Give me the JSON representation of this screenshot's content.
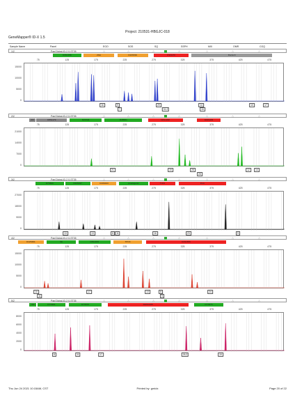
{
  "report": {
    "project": "Project: 210531-HBGJC-018",
    "app_name": "GeneMapper® ID-X 1.5",
    "columns": [
      "Sample Name",
      "Panel",
      "EGO",
      "SOS",
      "SQ",
      "SSPH",
      "MIX",
      "OMR",
      "CGQ"
    ]
  },
  "footer": {
    "date": "Thu Jun 24 2021 10:15AM, CST",
    "printed_by": "Printed by: gmidx",
    "page": "Page 20 of 22"
  },
  "panels": [
    {
      "label": "1/2",
      "name": "PanGlobal-ID-2.0-ST35",
      "color": "#3344cc",
      "markers": [
        {
          "name": "D3S1358",
          "color": "#22aa22",
          "x0": 100,
          "x1": 150
        },
        {
          "name": "vWA",
          "color": "#f0a030",
          "x0": 153,
          "x1": 207
        },
        {
          "name": "D16S539",
          "color": "#f0a030",
          "x0": 212,
          "x1": 265
        },
        {
          "name": "CSF1PO",
          "color": "#ee2222",
          "x0": 275,
          "x1": 335
        },
        {
          "name": "Penta D",
          "color": "#999999",
          "x0": 340,
          "x1": 480
        }
      ],
      "y_ticks": [
        "15000",
        "10000",
        "5000",
        "0"
      ],
      "y_max": 15000,
      "peaks": [
        {
          "x": 115,
          "h": 3000
        },
        {
          "x": 139,
          "h": 8000
        },
        {
          "x": 143,
          "h": 13000
        },
        {
          "x": 166,
          "h": 12000
        },
        {
          "x": 170,
          "h": 11500
        },
        {
          "x": 223,
          "h": 4500
        },
        {
          "x": 230,
          "h": 3800
        },
        {
          "x": 236,
          "h": 3200
        },
        {
          "x": 276,
          "h": 9000
        },
        {
          "x": 280,
          "h": 10000
        },
        {
          "x": 345,
          "h": 13500
        },
        {
          "x": 365,
          "h": 12500
        }
      ],
      "calls": [
        {
          "x": 135,
          "row": 0,
          "text": "16"
        },
        {
          "x": 157,
          "row": 0,
          "text": "9"
        },
        {
          "x": 160,
          "row": 1,
          "text": "7"
        },
        {
          "x": 216,
          "row": 0,
          "text": "29"
        },
        {
          "x": 226,
          "row": 1,
          "text": "31.2"
        },
        {
          "x": 277,
          "row": 0,
          "text": "14"
        },
        {
          "x": 279,
          "row": 1,
          "text": "15"
        },
        {
          "x": 350,
          "row": 0,
          "text": "10"
        },
        {
          "x": 370,
          "row": 0,
          "text": "17"
        }
      ]
    },
    {
      "label": "2/2",
      "name": "PanGlobal-ID-2.0-ST35",
      "color": "#22bb22",
      "markers": [
        {
          "name": "AM",
          "color": "#888888",
          "x0": 60,
          "x1": 70
        },
        {
          "name": "D8S1179",
          "color": "#888888",
          "x0": 72,
          "x1": 125
        },
        {
          "name": "D21S11",
          "color": "#22aa22",
          "x0": 130,
          "x1": 185
        },
        {
          "name": "D18S51",
          "color": "#22aa22",
          "x0": 190,
          "x1": 255
        },
        {
          "name": "D2S1338",
          "color": "#ee2222",
          "x0": 265,
          "x1": 325
        },
        {
          "name": "D19S433",
          "color": "#ee2222",
          "x0": 350,
          "x1": 390
        }
      ],
      "y_ticks": [
        "21000",
        "14000",
        "7000",
        "0"
      ],
      "y_max": 21000,
      "peaks": [
        {
          "x": 166,
          "h": 4500
        },
        {
          "x": 270,
          "h": 6000
        },
        {
          "x": 318,
          "h": 17000
        },
        {
          "x": 328,
          "h": 7000
        },
        {
          "x": 336,
          "h": 3500
        },
        {
          "x": 420,
          "h": 8000
        },
        {
          "x": 426,
          "h": 12000
        }
      ],
      "calls": [
        {
          "x": 150,
          "row": 0,
          "text": "21"
        },
        {
          "x": 233,
          "row": 0,
          "text": "19"
        },
        {
          "x": 265,
          "row": 0,
          "text": "28"
        },
        {
          "x": 275,
          "row": 1,
          "text": "28"
        },
        {
          "x": 345,
          "row": 0,
          "text": "12"
        },
        {
          "x": 357,
          "row": 0,
          "text": "14"
        }
      ]
    },
    {
      "label": "3/2",
      "name": "PanGlobal-ID-2.0-ST35",
      "color": "#222222",
      "markers": [
        {
          "name": "D7S820",
          "color": "#22aa22",
          "x0": 70,
          "x1": 120
        },
        {
          "name": "D13S317",
          "color": "#22aa22",
          "x0": 122,
          "x1": 165
        },
        {
          "name": "D19S433",
          "color": "#f0a030",
          "x0": 168,
          "x1": 210
        },
        {
          "name": "Amelogenin",
          "color": "#22aa22",
          "x0": 215,
          "x1": 265
        },
        {
          "name": "TH01",
          "color": "#ee2222",
          "x0": 268,
          "x1": 312
        },
        {
          "name": "FGA",
          "color": "#ee2222",
          "x0": 318,
          "x1": 400
        }
      ],
      "y_ticks": [
        "27000",
        "18000",
        "9000",
        "0"
      ],
      "y_max": 27000,
      "peaks": [
        {
          "x": 110,
          "h": 6000
        },
        {
          "x": 152,
          "h": 4500
        },
        {
          "x": 172,
          "h": 3500
        },
        {
          "x": 180,
          "h": 2500
        },
        {
          "x": 244,
          "h": 6000
        },
        {
          "x": 300,
          "h": 22000
        },
        {
          "x": 398,
          "h": 20000
        }
      ],
      "calls": [
        {
          "x": 82,
          "row": 0,
          "text": "13"
        },
        {
          "x": 121,
          "row": 0,
          "text": "13"
        },
        {
          "x": 150,
          "row": 0,
          "text": "8"
        },
        {
          "x": 157,
          "row": 0,
          "text": "11"
        },
        {
          "x": 211,
          "row": 0,
          "text": "16"
        },
        {
          "x": 259,
          "row": 0,
          "text": "23"
        },
        {
          "x": 330,
          "row": 0,
          "text": "9"
        }
      ]
    },
    {
      "label": "4/2",
      "name": "PanGlobal-ID-2.0-ST35",
      "color": "#dd4433",
      "markers": [
        {
          "name": "D12S391",
          "color": "#f0a030",
          "x0": 40,
          "x1": 85
        },
        {
          "name": "SE",
          "color": "#22aa22",
          "x0": 90,
          "x1": 140
        },
        {
          "name": "D6S1043",
          "color": "#22aa22",
          "x0": 145,
          "x1": 200
        },
        {
          "name": "TPOX",
          "color": "#f0a030",
          "x0": 205,
          "x1": 255
        },
        {
          "name": "D1S1656",
          "color": "#ee2222",
          "x0": 262,
          "x1": 400
        }
      ],
      "y_ticks": [
        "15000",
        "10000",
        "5000",
        "0"
      ],
      "y_max": 15000,
      "peaks": [
        {
          "x": 85,
          "h": 3000
        },
        {
          "x": 91,
          "h": 2000
        },
        {
          "x": 148,
          "h": 3500
        },
        {
          "x": 222,
          "h": 13000
        },
        {
          "x": 230,
          "h": 5000
        },
        {
          "x": 255,
          "h": 7500
        },
        {
          "x": 266,
          "h": 4000
        },
        {
          "x": 340,
          "h": 6000
        },
        {
          "x": 349,
          "h": 2500
        }
      ],
      "calls": [
        {
          "x": 40,
          "row": 0,
          "text": "10"
        },
        {
          "x": 45,
          "row": 1,
          "text": "11"
        },
        {
          "x": 116,
          "row": 0,
          "text": "17"
        },
        {
          "x": 200,
          "row": 0,
          "text": "13"
        },
        {
          "x": 219,
          "row": 0,
          "text": "8"
        },
        {
          "x": 221,
          "row": 1,
          "text": "9"
        },
        {
          "x": 290,
          "row": 0,
          "text": "24"
        }
      ]
    },
    {
      "label": "5/2",
      "name": "PanGlobal-ID-2.0-ST35",
      "color": "#cc2266",
      "markers": [
        {
          "name": "AM",
          "color": "#22aa22",
          "x0": 60,
          "x1": 72
        },
        {
          "name": "DYS391",
          "color": "#22aa22",
          "x0": 74,
          "x1": 122
        },
        {
          "name": "DYS570",
          "color": "#22aa22",
          "x0": 128,
          "x1": 185
        },
        {
          "name": "D22S1045",
          "color": "#ee2222",
          "x0": 195,
          "x1": 335
        },
        {
          "name": "DYS576",
          "color": "#22aa22",
          "x0": 345,
          "x1": 395
        }
      ],
      "y_ticks": [
        "8000",
        "6000",
        "4000",
        "2000",
        "0"
      ],
      "y_max": 8000,
      "peaks": [
        {
          "x": 103,
          "h": 4000
        },
        {
          "x": 130,
          "h": 5500
        },
        {
          "x": 163,
          "h": 6000
        },
        {
          "x": 330,
          "h": 5800
        },
        {
          "x": 355,
          "h": 3000
        },
        {
          "x": 398,
          "h": 6500
        }
      ],
      "calls": [
        {
          "x": 66,
          "row": 0,
          "text": "8"
        },
        {
          "x": 100,
          "row": 0,
          "text": "11"
        },
        {
          "x": 133,
          "row": 0,
          "text": "17"
        },
        {
          "x": 254,
          "row": 0,
          "text": "26.2"
        },
        {
          "x": 305,
          "row": 0,
          "text": "19"
        }
      ]
    }
  ],
  "x_ticks": [
    "75",
    "125",
    "175",
    "225",
    "275",
    "325",
    "375",
    "425",
    "475"
  ]
}
